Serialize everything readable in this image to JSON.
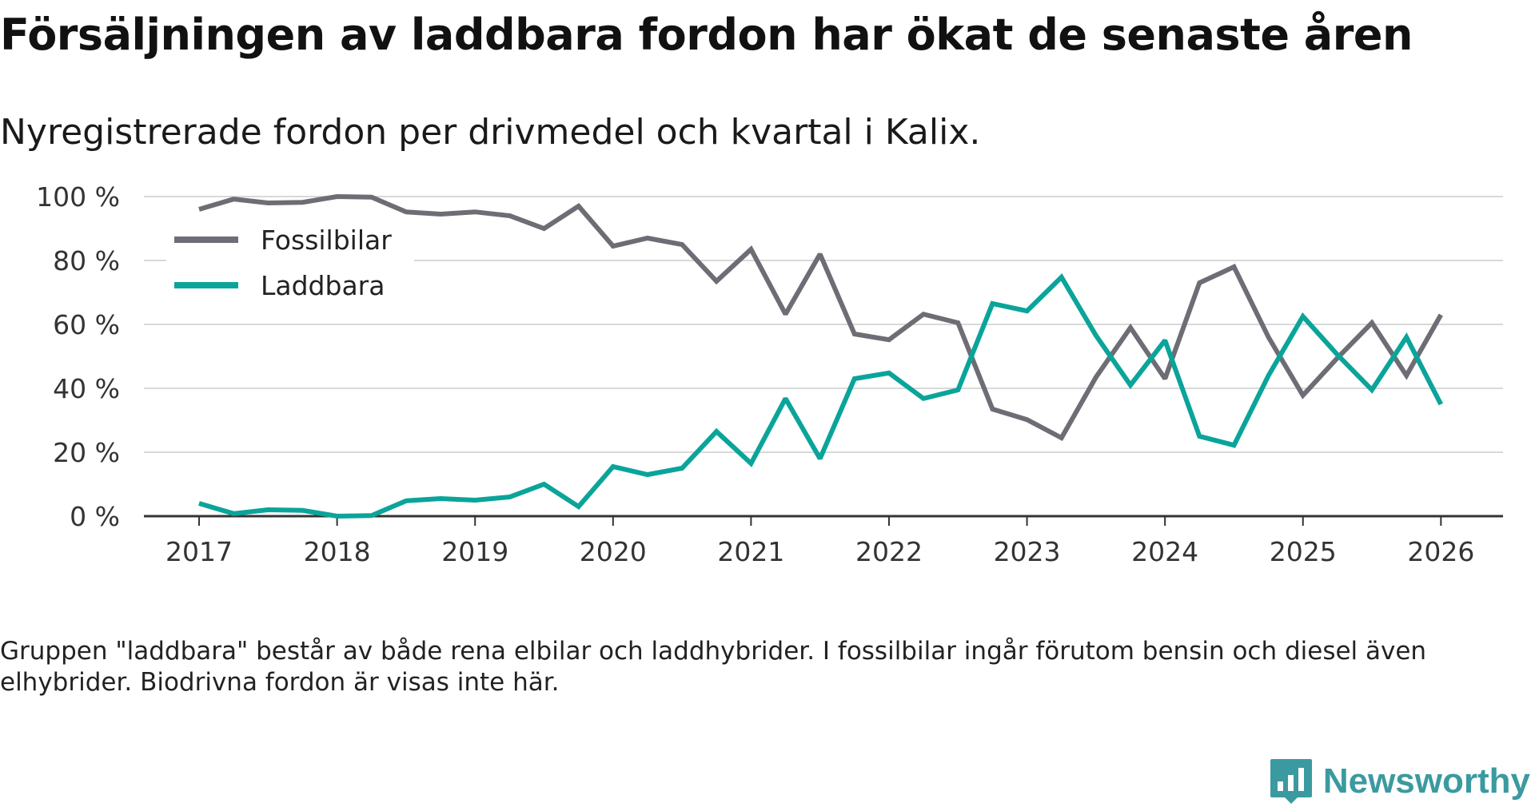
{
  "title": "Försäljningen av laddbara fordon har ökat de senaste åren",
  "subtitle": "Nyregistrerade fordon per drivmedel och kvartal i Kalix.",
  "footnote": "Gruppen \"laddbara\" består av både rena elbilar och laddhybrider. I fossilbilar ingår förutom bensin och diesel även elhybrider. Biodrivna fordon är visas inte här.",
  "brand": {
    "name": "Newsworthy",
    "icon": "bar-chart-speech-bubble-icon",
    "color": "#3a9aa0"
  },
  "chart_data": {
    "type": "line",
    "x_start": 2017,
    "x_step": 0.25,
    "xlim": [
      2016.6,
      2026.45
    ],
    "ylim": [
      0,
      100
    ],
    "yticks": [
      0,
      20,
      40,
      60,
      80,
      100
    ],
    "ytick_labels": [
      "0 %",
      "20 %",
      "40 %",
      "60 %",
      "80 %",
      "100 %"
    ],
    "xticks": [
      2017,
      2018,
      2019,
      2020,
      2021,
      2022,
      2023,
      2024,
      2025,
      2026
    ],
    "xtick_labels": [
      "2017",
      "2018",
      "2019",
      "2020",
      "2021",
      "2022",
      "2023",
      "2024",
      "2025",
      "2026"
    ],
    "grid": true,
    "legend_position": "top-left",
    "series": [
      {
        "name": "Fossilbilar",
        "color": "#6e6d75",
        "values": [
          96,
          99.2,
          98,
          98.2,
          100,
          99.8,
          95.2,
          94.5,
          95.2,
          94,
          90,
          97,
          84.5,
          87,
          85,
          73.5,
          83.5,
          63.2,
          82,
          57,
          55.2,
          63.2,
          60.5,
          33.5,
          30.2,
          24.5,
          43.5,
          59,
          43,
          73,
          78,
          56,
          37.8,
          49.5,
          60.5,
          44,
          63
        ]
      },
      {
        "name": "Laddbara",
        "color": "#0aa49a",
        "values": [
          4,
          0.8,
          2,
          1.8,
          0,
          0.2,
          4.8,
          5.5,
          5,
          6,
          10,
          3,
          15.5,
          13,
          15,
          26.5,
          16.5,
          36.8,
          18,
          43,
          44.8,
          36.8,
          39.5,
          66.5,
          64.2,
          74.8,
          56.5,
          41,
          55,
          25,
          22.2,
          44,
          62.5,
          50.5,
          39.5,
          56,
          35
        ]
      }
    ]
  }
}
